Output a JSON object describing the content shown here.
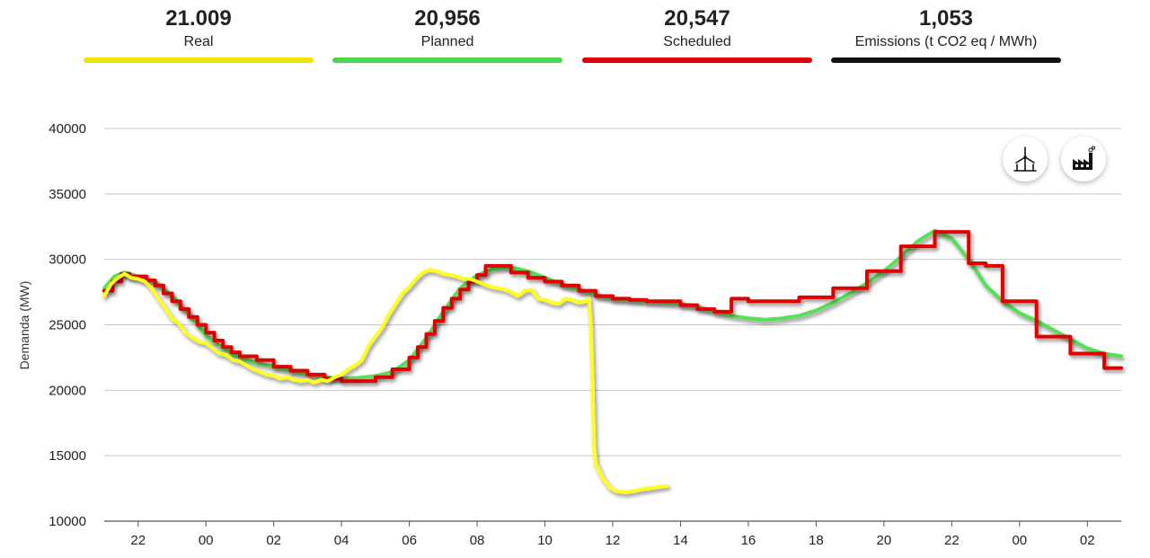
{
  "kpis": [
    {
      "value": "21.009",
      "label": "Real",
      "color": "#f2e600"
    },
    {
      "value": "20,956",
      "label": "Planned",
      "color": "#4cd64c"
    },
    {
      "value": "20,547",
      "label": "Scheduled",
      "color": "#e00000"
    },
    {
      "value": "1,053",
      "label": "Emissions (t CO2 eq / MWh)",
      "color": "#111111"
    }
  ],
  "buttons": {
    "wind": "wind-turbine-icon",
    "factory": "factory-icon"
  },
  "chart_data": {
    "type": "line",
    "ylabel": "Demanda (MW)",
    "ylim": [
      10000,
      40000
    ],
    "y_ticks": [
      10000,
      15000,
      20000,
      25000,
      30000,
      35000,
      40000
    ],
    "xlim": [
      21,
      51
    ],
    "x_ticks": [
      {
        "x": 22,
        "label": "22"
      },
      {
        "x": 24,
        "label": "00"
      },
      {
        "x": 26,
        "label": "02"
      },
      {
        "x": 28,
        "label": "04"
      },
      {
        "x": 30,
        "label": "06"
      },
      {
        "x": 32,
        "label": "08"
      },
      {
        "x": 34,
        "label": "10"
      },
      {
        "x": 36,
        "label": "12"
      },
      {
        "x": 38,
        "label": "14"
      },
      {
        "x": 40,
        "label": "16"
      },
      {
        "x": 42,
        "label": "18"
      },
      {
        "x": 44,
        "label": "20"
      },
      {
        "x": 46,
        "label": "22"
      },
      {
        "x": 48,
        "label": "00"
      },
      {
        "x": 50,
        "label": "02"
      }
    ],
    "grid": true,
    "series": [
      {
        "name": "Planned",
        "color": "#55e055",
        "step": false,
        "points": [
          [
            21,
            27800
          ],
          [
            21.3,
            28700
          ],
          [
            21.6,
            29000
          ],
          [
            22,
            28700
          ],
          [
            22.5,
            28300
          ],
          [
            23,
            27200
          ],
          [
            23.5,
            25800
          ],
          [
            24,
            24200
          ],
          [
            24.5,
            23200
          ],
          [
            25,
            22500
          ],
          [
            25.5,
            22100
          ],
          [
            26,
            21800
          ],
          [
            26.5,
            21500
          ],
          [
            27,
            21200
          ],
          [
            27.5,
            21000
          ],
          [
            28,
            20900
          ],
          [
            28.5,
            20950
          ],
          [
            29,
            21100
          ],
          [
            29.5,
            21400
          ],
          [
            30,
            22300
          ],
          [
            30.5,
            24000
          ],
          [
            31,
            26000
          ],
          [
            31.5,
            27800
          ],
          [
            32,
            28800
          ],
          [
            32.5,
            29300
          ],
          [
            33,
            29400
          ],
          [
            33.5,
            29100
          ],
          [
            34,
            28600
          ],
          [
            34.5,
            28100
          ],
          [
            35,
            27700
          ],
          [
            35.5,
            27300
          ],
          [
            36,
            27000
          ],
          [
            36.5,
            26900
          ],
          [
            37,
            26800
          ],
          [
            37.5,
            26700
          ],
          [
            38,
            26600
          ],
          [
            38.5,
            26400
          ],
          [
            39,
            26000
          ],
          [
            39.5,
            25700
          ],
          [
            40,
            25500
          ],
          [
            40.5,
            25400
          ],
          [
            41,
            25500
          ],
          [
            41.5,
            25700
          ],
          [
            42,
            26100
          ],
          [
            42.5,
            26700
          ],
          [
            43,
            27400
          ],
          [
            43.5,
            28200
          ],
          [
            44,
            29100
          ],
          [
            44.5,
            30200
          ],
          [
            45,
            31400
          ],
          [
            45.5,
            32200
          ],
          [
            46,
            31600
          ],
          [
            46.5,
            30000
          ],
          [
            47,
            28000
          ],
          [
            47.5,
            26800
          ],
          [
            48,
            25900
          ],
          [
            48.5,
            25300
          ],
          [
            49,
            24600
          ],
          [
            49.5,
            23900
          ],
          [
            50,
            23200
          ],
          [
            50.5,
            22800
          ],
          [
            51,
            22600
          ]
        ]
      },
      {
        "name": "Scheduled",
        "color": "#e00000",
        "step": true,
        "points": [
          [
            21,
            27600
          ],
          [
            21.25,
            28300
          ],
          [
            21.5,
            28900
          ],
          [
            21.75,
            28700
          ],
          [
            22,
            28700
          ],
          [
            22.25,
            28400
          ],
          [
            22.5,
            28000
          ],
          [
            22.75,
            27400
          ],
          [
            23,
            26800
          ],
          [
            23.25,
            26200
          ],
          [
            23.5,
            25600
          ],
          [
            23.75,
            25000
          ],
          [
            24,
            24400
          ],
          [
            24.25,
            23800
          ],
          [
            24.5,
            23300
          ],
          [
            24.75,
            22900
          ],
          [
            25,
            22600
          ],
          [
            25.5,
            22300
          ],
          [
            26,
            21800
          ],
          [
            26.5,
            21500
          ],
          [
            27,
            21200
          ],
          [
            27.5,
            20900
          ],
          [
            28,
            20700
          ],
          [
            28.5,
            20700
          ],
          [
            29,
            21000
          ],
          [
            29.5,
            21600
          ],
          [
            30,
            22500
          ],
          [
            30.25,
            23300
          ],
          [
            30.5,
            24300
          ],
          [
            30.75,
            25300
          ],
          [
            31,
            26300
          ],
          [
            31.25,
            27000
          ],
          [
            31.5,
            27700
          ],
          [
            31.75,
            28300
          ],
          [
            32,
            28800
          ],
          [
            32.25,
            29500
          ],
          [
            33,
            29000
          ],
          [
            33.5,
            28600
          ],
          [
            34,
            28300
          ],
          [
            34.5,
            28000
          ],
          [
            35,
            27600
          ],
          [
            35.5,
            27200
          ],
          [
            36,
            27000
          ],
          [
            36.5,
            26900
          ],
          [
            37,
            26800
          ],
          [
            37.5,
            26800
          ],
          [
            38,
            26500
          ],
          [
            38.5,
            26200
          ],
          [
            39,
            26000
          ],
          [
            39.5,
            27000
          ],
          [
            40,
            26800
          ],
          [
            40.5,
            26800
          ],
          [
            41,
            26800
          ],
          [
            41.5,
            27100
          ],
          [
            42,
            27100
          ],
          [
            42.5,
            27800
          ],
          [
            43,
            27800
          ],
          [
            43.5,
            29100
          ],
          [
            44,
            29100
          ],
          [
            44.5,
            31000
          ],
          [
            45,
            31000
          ],
          [
            45.5,
            32100
          ],
          [
            46,
            32100
          ],
          [
            46.5,
            29700
          ],
          [
            47,
            29500
          ],
          [
            47.5,
            26800
          ],
          [
            48,
            26800
          ],
          [
            48.5,
            24100
          ],
          [
            49,
            24100
          ],
          [
            49.5,
            22800
          ],
          [
            50,
            22800
          ],
          [
            50.5,
            21700
          ],
          [
            51,
            21700
          ]
        ]
      },
      {
        "name": "Real",
        "color": "#ffff1a",
        "step": false,
        "points": [
          [
            21,
            27200
          ],
          [
            21.2,
            28100
          ],
          [
            21.4,
            28600
          ],
          [
            21.6,
            28900
          ],
          [
            21.8,
            28600
          ],
          [
            22,
            28500
          ],
          [
            22.2,
            28300
          ],
          [
            22.4,
            27800
          ],
          [
            22.6,
            27000
          ],
          [
            22.8,
            26300
          ],
          [
            23,
            25500
          ],
          [
            23.2,
            25100
          ],
          [
            23.4,
            24400
          ],
          [
            23.6,
            24000
          ],
          [
            23.8,
            23700
          ],
          [
            24,
            23600
          ],
          [
            24.2,
            23200
          ],
          [
            24.4,
            22800
          ],
          [
            24.6,
            22700
          ],
          [
            24.8,
            22300
          ],
          [
            25,
            22200
          ],
          [
            25.2,
            21900
          ],
          [
            25.4,
            21600
          ],
          [
            25.6,
            21400
          ],
          [
            25.8,
            21200
          ],
          [
            26,
            21100
          ],
          [
            26.2,
            20900
          ],
          [
            26.4,
            21000
          ],
          [
            26.6,
            20800
          ],
          [
            26.8,
            20700
          ],
          [
            27,
            20800
          ],
          [
            27.2,
            20600
          ],
          [
            27.4,
            20800
          ],
          [
            27.6,
            20700
          ],
          [
            27.8,
            21000
          ],
          [
            28,
            21200
          ],
          [
            28.2,
            21600
          ],
          [
            28.4,
            21900
          ],
          [
            28.6,
            22300
          ],
          [
            28.8,
            23400
          ],
          [
            29,
            24100
          ],
          [
            29.2,
            24800
          ],
          [
            29.4,
            25800
          ],
          [
            29.6,
            26600
          ],
          [
            29.8,
            27400
          ],
          [
            30,
            27900
          ],
          [
            30.2,
            28500
          ],
          [
            30.4,
            29000
          ],
          [
            30.6,
            29200
          ],
          [
            30.8,
            29100
          ],
          [
            31,
            28900
          ],
          [
            31.2,
            28800
          ],
          [
            31.4,
            28700
          ],
          [
            31.6,
            28500
          ],
          [
            31.8,
            28500
          ],
          [
            32,
            28300
          ],
          [
            32.2,
            28100
          ],
          [
            32.4,
            27900
          ],
          [
            32.6,
            27800
          ],
          [
            32.8,
            27700
          ],
          [
            33,
            27500
          ],
          [
            33.2,
            27200
          ],
          [
            33.4,
            27600
          ],
          [
            33.6,
            27700
          ],
          [
            33.8,
            27000
          ],
          [
            34,
            26900
          ],
          [
            34.2,
            26700
          ],
          [
            34.4,
            26600
          ],
          [
            34.6,
            27000
          ],
          [
            34.8,
            26900
          ],
          [
            35,
            26700
          ],
          [
            35.2,
            26800
          ],
          [
            35.3,
            27000
          ],
          [
            35.35,
            25000
          ],
          [
            35.4,
            21000
          ],
          [
            35.45,
            15800
          ],
          [
            35.5,
            14400
          ],
          [
            35.7,
            13300
          ],
          [
            35.9,
            12600
          ],
          [
            36.1,
            12300
          ],
          [
            36.4,
            12200
          ],
          [
            36.8,
            12400
          ],
          [
            37.3,
            12600
          ],
          [
            37.6,
            12700
          ]
        ]
      }
    ]
  }
}
